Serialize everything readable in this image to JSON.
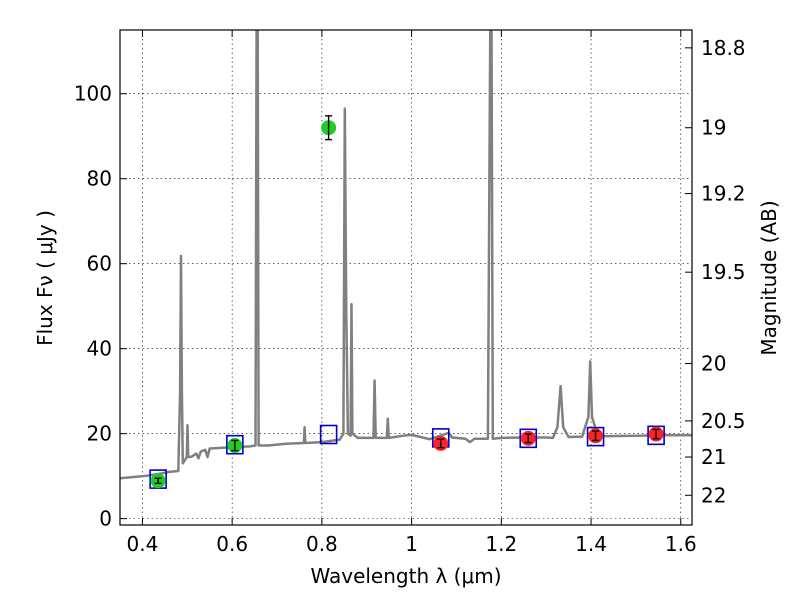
{
  "chart_data": {
    "type": "line",
    "title": "",
    "xlabel": "Wavelength  λ (μm)",
    "ylabel": "Flux  Fν  ( μJy )",
    "y2label": "Magnitude (AB)",
    "xlim": [
      0.35,
      1.625
    ],
    "ylim": [
      -1.5,
      115
    ],
    "grid": true,
    "x_ticks": [
      0.4,
      0.6,
      0.8,
      1.0,
      1.2,
      1.4,
      1.6
    ],
    "x_tick_labels": [
      "0.4",
      "0.6",
      "0.8",
      "1",
      "1.2",
      "1.4",
      "1.6"
    ],
    "y_ticks": [
      0,
      20,
      40,
      60,
      80,
      100
    ],
    "y_tick_labels": [
      "0",
      "20",
      "40",
      "60",
      "80",
      "100"
    ],
    "y2_tick_labels": [
      {
        "label": "18.8",
        "flux": 110.8
      },
      {
        "label": "19",
        "flux": 92.0
      },
      {
        "label": "19.2",
        "flux": 76.5
      },
      {
        "label": "19.5",
        "flux": 58.0
      },
      {
        "label": "20",
        "flux": 36.5
      },
      {
        "label": "20.5",
        "flux": 23.0
      },
      {
        "label": "21",
        "flux": 14.5
      },
      {
        "label": "22",
        "flux": 5.5
      }
    ],
    "series": [
      {
        "kind": "spectrum",
        "color": "#808080",
        "points": [
          [
            0.35,
            9.5
          ],
          [
            0.38,
            9.8
          ],
          [
            0.41,
            10.1
          ],
          [
            0.44,
            10.6
          ],
          [
            0.46,
            11.0
          ],
          [
            0.48,
            11.2
          ],
          [
            0.484,
            30.0
          ],
          [
            0.486,
            61.8
          ],
          [
            0.488,
            30.0
          ],
          [
            0.49,
            13.0
          ],
          [
            0.499,
            14.5
          ],
          [
            0.5005,
            22.0
          ],
          [
            0.502,
            14.5
          ],
          [
            0.51,
            14.6
          ],
          [
            0.52,
            15.3
          ],
          [
            0.525,
            14.2
          ],
          [
            0.53,
            15.8
          ],
          [
            0.54,
            16.2
          ],
          [
            0.545,
            14.5
          ],
          [
            0.55,
            16.5
          ],
          [
            0.6,
            16.8
          ],
          [
            0.64,
            17.0
          ],
          [
            0.652,
            17.2
          ],
          [
            0.6545,
            117
          ],
          [
            0.657,
            117
          ],
          [
            0.659,
            17.2
          ],
          [
            0.68,
            17.2
          ],
          [
            0.72,
            17.6
          ],
          [
            0.76,
            17.8
          ],
          [
            0.7615,
            21.5
          ],
          [
            0.763,
            17.8
          ],
          [
            0.8,
            18.0
          ],
          [
            0.84,
            18.6
          ],
          [
            0.848,
            20.0
          ],
          [
            0.851,
            96.5
          ],
          [
            0.8545,
            48.0
          ],
          [
            0.858,
            20.0
          ],
          [
            0.864,
            19.5
          ],
          [
            0.866,
            50.5
          ],
          [
            0.868,
            20.0
          ],
          [
            0.88,
            19.0
          ],
          [
            0.915,
            19.0
          ],
          [
            0.9175,
            32.5
          ],
          [
            0.92,
            19.0
          ],
          [
            0.93,
            19.0
          ],
          [
            0.945,
            19.0
          ],
          [
            0.947,
            23.5
          ],
          [
            0.949,
            19.0
          ],
          [
            0.98,
            19.5
          ],
          [
            1.0,
            19.7
          ],
          [
            1.04,
            18.7
          ],
          [
            1.083,
            20.2
          ],
          [
            1.09,
            19.1
          ],
          [
            1.12,
            18.8
          ],
          [
            1.13,
            18.0
          ],
          [
            1.14,
            18.8
          ],
          [
            1.17,
            18.8
          ],
          [
            1.1755,
            117
          ],
          [
            1.178,
            117
          ],
          [
            1.181,
            18.8
          ],
          [
            1.2,
            19.0
          ],
          [
            1.25,
            19.1
          ],
          [
            1.3,
            19.1
          ],
          [
            1.315,
            19.0
          ],
          [
            1.325,
            21.5
          ],
          [
            1.332,
            31.2
          ],
          [
            1.338,
            21.5
          ],
          [
            1.35,
            19.2
          ],
          [
            1.38,
            19.3
          ],
          [
            1.394,
            24.0
          ],
          [
            1.398,
            37.0
          ],
          [
            1.402,
            24.0
          ],
          [
            1.415,
            19.4
          ],
          [
            1.5,
            19.5
          ],
          [
            1.56,
            19.6
          ],
          [
            1.625,
            19.6
          ]
        ]
      },
      {
        "kind": "model_boxes",
        "color": "#0000cc",
        "points": [
          [
            0.435,
            9.3
          ],
          [
            0.606,
            17.4
          ],
          [
            0.815,
            19.8
          ],
          [
            1.065,
            19.0
          ],
          [
            1.26,
            18.9
          ],
          [
            1.41,
            19.3
          ],
          [
            1.545,
            19.6
          ]
        ]
      },
      {
        "kind": "observed_green",
        "color": "#22cc22",
        "points": [
          {
            "x": 0.435,
            "y": 8.9,
            "err": 0.6
          },
          {
            "x": 0.606,
            "y": 17.2,
            "err": 1.2
          },
          {
            "x": 0.815,
            "y": 92.0,
            "err": 2.8
          }
        ]
      },
      {
        "kind": "observed_red",
        "color": "#ff2222",
        "points": [
          {
            "x": 1.065,
            "y": 17.7,
            "err": 1.0
          },
          {
            "x": 1.26,
            "y": 18.9,
            "err": 1.0
          },
          {
            "x": 1.41,
            "y": 19.5,
            "err": 1.1
          },
          {
            "x": 1.545,
            "y": 19.9,
            "err": 1.1
          }
        ]
      }
    ]
  }
}
